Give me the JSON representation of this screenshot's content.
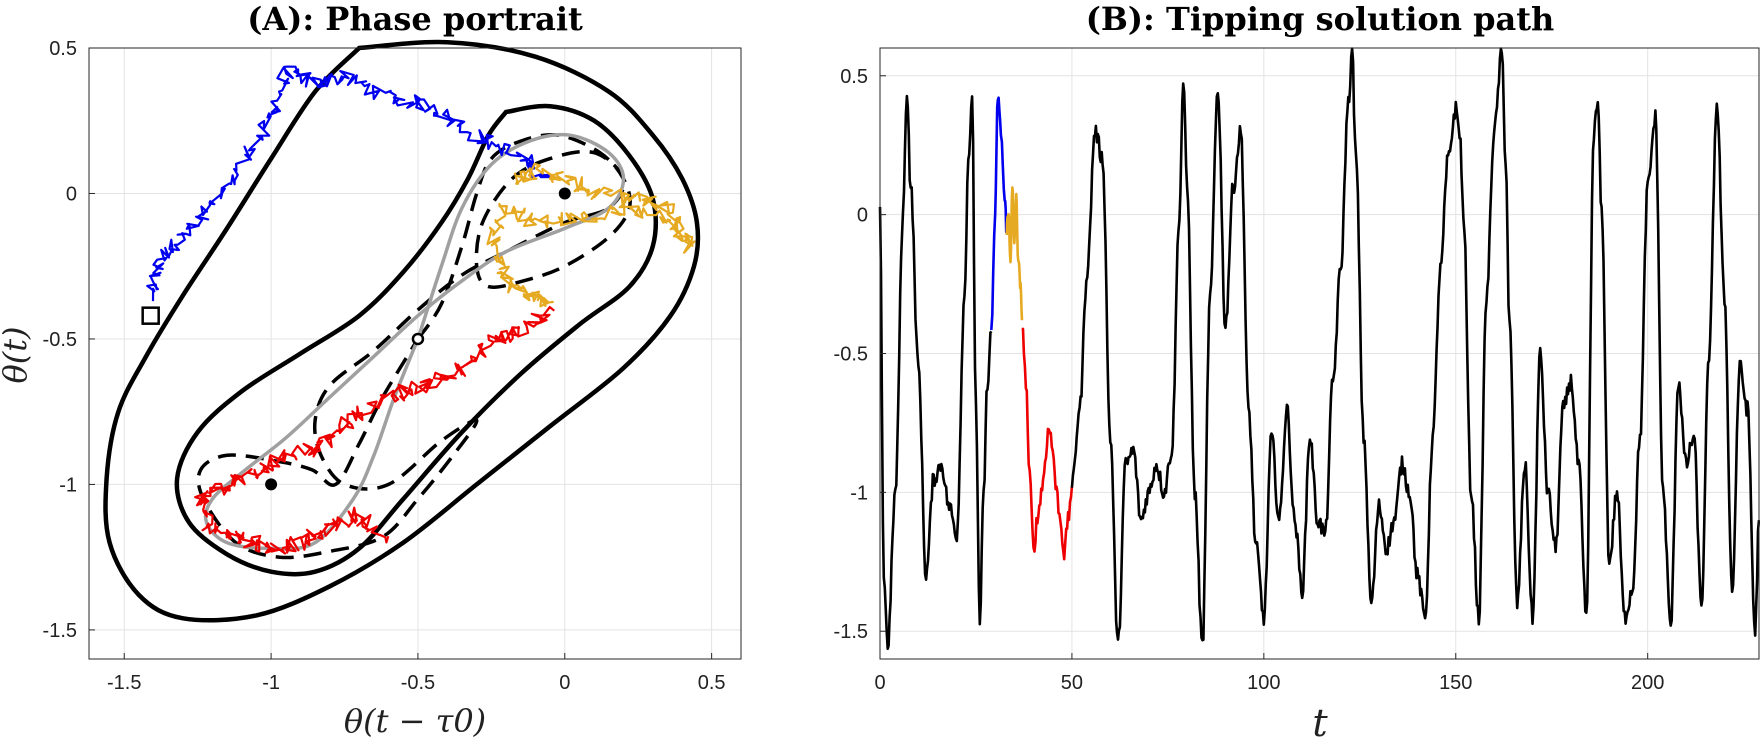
{
  "chart_data": [
    {
      "type": "line",
      "panel": "A",
      "title": "(A): Phase portrait",
      "xlabel": "θ(t − τ0)",
      "ylabel": "θ(t)",
      "xlim": [
        -1.62,
        0.6
      ],
      "ylim": [
        -1.6,
        0.5
      ],
      "xticks": [
        -1.5,
        -1,
        -0.5,
        0,
        0.5
      ],
      "xtick_labels": [
        "-1.5",
        "-1",
        "-0.5",
        "0",
        "0.5"
      ],
      "yticks": [
        -1.5,
        -1,
        -0.5,
        0,
        0.5
      ],
      "ytick_labels": [
        "-1.5",
        "-1",
        "-0.5",
        "0",
        "0.5"
      ],
      "grid": true,
      "colors": {
        "blue": "#0000ee",
        "orange": "#e6aa22",
        "red": "#ee0000",
        "gray": "#a0a0a0",
        "black": "#000000"
      },
      "series": [
        {
          "name": "outer-solid-orbit",
          "style": "solid-black",
          "x": [
            -0.7,
            -0.4,
            -0.1,
            0.15,
            0.3,
            0.4,
            0.45,
            0.44,
            0.36,
            0.2,
            -0.05,
            -0.3,
            -0.55,
            -0.8,
            -1.05,
            -1.3,
            -1.45,
            -1.55,
            -1.56,
            -1.52,
            -1.42,
            -1.3,
            -1.15,
            -1.0,
            -0.85,
            -0.7
          ],
          "y": [
            0.5,
            0.52,
            0.47,
            0.35,
            0.2,
            0.05,
            -0.1,
            -0.25,
            -0.42,
            -0.6,
            -0.8,
            -1.0,
            -1.2,
            -1.35,
            -1.45,
            -1.46,
            -1.38,
            -1.2,
            -0.98,
            -0.75,
            -0.55,
            -0.35,
            -0.12,
            0.12,
            0.35,
            0.5
          ]
        },
        {
          "name": "inner-solid-orbit",
          "style": "solid-black",
          "x": [
            -0.2,
            -0.05,
            0.1,
            0.22,
            0.3,
            0.3,
            0.22,
            0.05,
            -0.15,
            -0.35,
            -0.55,
            -0.7,
            -0.85,
            -1.0,
            -1.15,
            -1.28,
            -1.32,
            -1.25,
            -1.1,
            -0.9,
            -0.7,
            -0.55,
            -0.42,
            -0.33,
            -0.26,
            -0.2
          ],
          "y": [
            0.28,
            0.3,
            0.25,
            0.13,
            -0.02,
            -0.18,
            -0.32,
            -0.45,
            -0.62,
            -0.82,
            -1.05,
            -1.22,
            -1.3,
            -1.3,
            -1.24,
            -1.13,
            -0.98,
            -0.82,
            -0.68,
            -0.55,
            -0.42,
            -0.27,
            -0.1,
            0.05,
            0.2,
            0.28
          ]
        },
        {
          "name": "stable-manifold-dashed",
          "style": "dashed-black",
          "x": [
            -0.5,
            -0.42,
            -0.35,
            -0.3,
            -0.25,
            -0.15,
            -0.02,
            0.12,
            0.2,
            0.22,
            0.15,
            0.0,
            -0.14,
            -0.26,
            -0.3,
            -0.28,
            -0.18,
            -0.05,
            0.1,
            0.2,
            0.15,
            0.0,
            -0.2,
            -0.35,
            -0.5,
            -0.65,
            -0.8,
            -0.85,
            -0.83,
            -0.75,
            -0.6,
            -0.42,
            -0.3,
            -0.38,
            -0.5,
            -0.62,
            -0.8,
            -0.97,
            -1.12,
            -1.23,
            -1.24,
            -1.15,
            -0.98,
            -0.86,
            -0.78,
            -0.7,
            -0.62,
            -0.5
          ],
          "y": [
            -0.5,
            -0.38,
            -0.18,
            0.0,
            0.12,
            0.18,
            0.2,
            0.14,
            0.05,
            -0.05,
            -0.15,
            -0.25,
            -0.3,
            -0.32,
            -0.25,
            -0.1,
            0.05,
            0.12,
            0.14,
            0.05,
            -0.05,
            -0.1,
            -0.2,
            -0.28,
            -0.4,
            -0.54,
            -0.66,
            -0.78,
            -0.9,
            -1.0,
            -1.0,
            -0.85,
            -0.78,
            -0.9,
            -1.05,
            -1.18,
            -1.23,
            -1.25,
            -1.2,
            -1.05,
            -0.95,
            -0.9,
            -0.92,
            -0.95,
            -1.0,
            -0.86,
            -0.7,
            -0.5
          ]
        },
        {
          "name": "unstable-figure-eight",
          "style": "solid-gray",
          "x": [
            -0.5,
            -0.42,
            -0.35,
            -0.25,
            -0.12,
            0.02,
            0.15,
            0.2,
            0.15,
            0.0,
            -0.2,
            -0.35,
            -0.5,
            -0.65,
            -0.8,
            -0.95,
            -1.1,
            -1.2,
            -1.22,
            -1.15,
            -1.0,
            -0.85,
            -0.72,
            -0.65,
            -0.58,
            -0.5
          ],
          "y": [
            -0.5,
            -0.25,
            -0.05,
            0.1,
            0.18,
            0.2,
            0.14,
            0.05,
            -0.05,
            -0.12,
            -0.2,
            -0.3,
            -0.42,
            -0.56,
            -0.7,
            -0.84,
            -0.96,
            -1.05,
            -1.13,
            -1.2,
            -1.22,
            -1.2,
            -1.05,
            -0.9,
            -0.7,
            -0.5
          ]
        },
        {
          "name": "tipping-path-blue",
          "style": "noisy-blue",
          "x": [
            -1.41,
            -1.38,
            -1.3,
            -1.2,
            -1.1,
            -1.0,
            -0.95,
            -0.85,
            -0.75,
            -0.6,
            -0.45,
            -0.3,
            -0.15,
            -0.05
          ],
          "y": [
            -0.36,
            -0.22,
            -0.15,
            -0.05,
            0.1,
            0.25,
            0.42,
            0.38,
            0.4,
            0.33,
            0.3,
            0.2,
            0.12,
            0.05
          ]
        },
        {
          "name": "tipping-path-orange",
          "style": "noisy-orange",
          "x": [
            -0.18,
            -0.1,
            0.0,
            0.1,
            0.25,
            0.35,
            0.42,
            0.38,
            0.22,
            0.05,
            -0.1,
            -0.2,
            -0.25,
            -0.2,
            -0.12,
            -0.05
          ],
          "y": [
            0.05,
            0.08,
            0.05,
            0.0,
            -0.02,
            -0.05,
            -0.18,
            -0.1,
            -0.05,
            -0.08,
            -0.1,
            -0.05,
            -0.18,
            -0.3,
            -0.35,
            -0.38
          ]
        },
        {
          "name": "tipping-path-red",
          "style": "noisy-red",
          "x": [
            -0.05,
            -0.15,
            -0.25,
            -0.35,
            -0.45,
            -0.55,
            -0.65,
            -0.75,
            -0.85,
            -0.95,
            -1.05,
            -1.15,
            -1.25,
            -1.2,
            -1.1,
            -1.0,
            -0.9,
            -0.8,
            -0.7,
            -0.62
          ],
          "y": [
            -0.4,
            -0.48,
            -0.5,
            -0.6,
            -0.65,
            -0.68,
            -0.72,
            -0.8,
            -0.88,
            -0.9,
            -0.95,
            -1.0,
            -1.05,
            -1.15,
            -1.18,
            -1.22,
            -1.2,
            -1.15,
            -1.1,
            -1.2
          ]
        }
      ],
      "markers": [
        {
          "name": "stable-point-upper",
          "x": 0,
          "y": 0,
          "style": "filled"
        },
        {
          "name": "stable-point-lower",
          "x": -1,
          "y": -1,
          "style": "filled"
        },
        {
          "name": "saddle-point",
          "x": -0.5,
          "y": -0.5,
          "style": "open-circle"
        },
        {
          "name": "start-marker",
          "x": -1.41,
          "y": -0.42,
          "style": "open-square"
        }
      ]
    },
    {
      "type": "line",
      "panel": "B",
      "title": "(B): Tipping solution path",
      "xlabel": "t",
      "ylabel": "",
      "xlim": [
        0,
        229
      ],
      "ylim": [
        -1.6,
        0.6
      ],
      "xticks": [
        0,
        50,
        100,
        150,
        200
      ],
      "xtick_labels": [
        "0",
        "50",
        "100",
        "150",
        "200"
      ],
      "yticks": [
        -1.5,
        -1,
        -0.5,
        0,
        0.5
      ],
      "ytick_labels": [
        "-1.5",
        "-1",
        "-0.5",
        "0",
        "0.5"
      ],
      "grid": true,
      "series": [
        {
          "name": "path-black-pre",
          "color": "#000000",
          "x": [
            0,
            1,
            2,
            4,
            6,
            7,
            8,
            10,
            12,
            14,
            16,
            18,
            20,
            22,
            23,
            24,
            25,
            26,
            27,
            28,
            29
          ],
          "y": [
            0,
            -1.3,
            -1.55,
            -1.0,
            0.0,
            0.45,
            0.1,
            -0.55,
            -1.3,
            -0.95,
            -0.9,
            -1.05,
            -1.15,
            -0.3,
            0.2,
            0.4,
            -0.7,
            -1.48,
            -1.0,
            -0.6,
            -0.42
          ]
        },
        {
          "name": "path-blue",
          "color": "#0000ee",
          "x": [
            29,
            30,
            30.7,
            31.5,
            32.5,
            33
          ],
          "y": [
            -0.42,
            0.0,
            0.43,
            0.3,
            0.05,
            -0.05
          ]
        },
        {
          "name": "path-orange",
          "color": "#e6aa22",
          "x": [
            33,
            33.5,
            34,
            34.5,
            35,
            35.5,
            36,
            36.5,
            37
          ],
          "y": [
            -0.05,
            0.0,
            -0.15,
            0.09,
            -0.1,
            0.05,
            -0.15,
            -0.25,
            -0.38
          ]
        },
        {
          "name": "path-red",
          "color": "#ee0000",
          "x": [
            37,
            38,
            39,
            40,
            41,
            42,
            43,
            44,
            45,
            46,
            47,
            48,
            49,
            50
          ],
          "y": [
            -0.38,
            -0.6,
            -0.95,
            -1.2,
            -1.1,
            -1.0,
            -0.9,
            -0.75,
            -0.85,
            -1.0,
            -1.1,
            -1.22,
            -1.1,
            -0.98
          ]
        },
        {
          "name": "path-black-post",
          "color": "#000000",
          "x": [
            50,
            52,
            54,
            56,
            58,
            60,
            62,
            64,
            66,
            68,
            70,
            72,
            74,
            76,
            78,
            79,
            80,
            82,
            84,
            86,
            88,
            90,
            92,
            94,
            96,
            98,
            100,
            102,
            104,
            106,
            108,
            110,
            112,
            114,
            116,
            118,
            120,
            122,
            123,
            124,
            126,
            128,
            130,
            132,
            134,
            136,
            138,
            140,
            142,
            144,
            146,
            148,
            150,
            151,
            152,
            154,
            156,
            158,
            160,
            162,
            163,
            164,
            166,
            168,
            170,
            172,
            174,
            176,
            178,
            180,
            182,
            184,
            186,
            187,
            188,
            190,
            192,
            194,
            196,
            198,
            200,
            202,
            204,
            206,
            208,
            210,
            212,
            214,
            216,
            218,
            220,
            222,
            224,
            226,
            228,
            229
          ],
          "y": [
            -0.98,
            -0.7,
            -0.2,
            0.3,
            0.2,
            -0.8,
            -1.55,
            -0.9,
            -0.85,
            -1.1,
            -1.0,
            -0.9,
            -1.0,
            -0.85,
            0.0,
            0.48,
            0.1,
            -1.0,
            -1.55,
            -0.3,
            0.45,
            -0.4,
            0.1,
            0.3,
            -0.7,
            -1.2,
            -1.45,
            -0.8,
            -1.1,
            -0.7,
            -1.1,
            -1.35,
            -0.8,
            -1.1,
            -1.15,
            -0.6,
            -0.2,
            0.4,
            0.58,
            0.2,
            -0.8,
            -1.4,
            -1.05,
            -1.2,
            -1.1,
            -0.9,
            -1.0,
            -1.3,
            -1.45,
            -0.8,
            -0.2,
            0.2,
            0.38,
            0.3,
            0.0,
            -1.0,
            -1.45,
            -0.3,
            0.3,
            0.58,
            0.2,
            -0.4,
            -1.4,
            -0.9,
            -1.45,
            -0.5,
            -1.0,
            -1.2,
            -0.7,
            -0.6,
            -0.9,
            -1.45,
            0.3,
            0.4,
            0.0,
            -1.25,
            -1.0,
            -1.45,
            -1.35,
            -0.8,
            0.1,
            0.35,
            -1.0,
            -1.48,
            -0.6,
            -0.9,
            -0.8,
            -1.4,
            -0.5,
            0.4,
            -0.3,
            -1.35,
            -0.55,
            -0.7,
            -1.5,
            -1.1
          ]
        }
      ]
    }
  ]
}
